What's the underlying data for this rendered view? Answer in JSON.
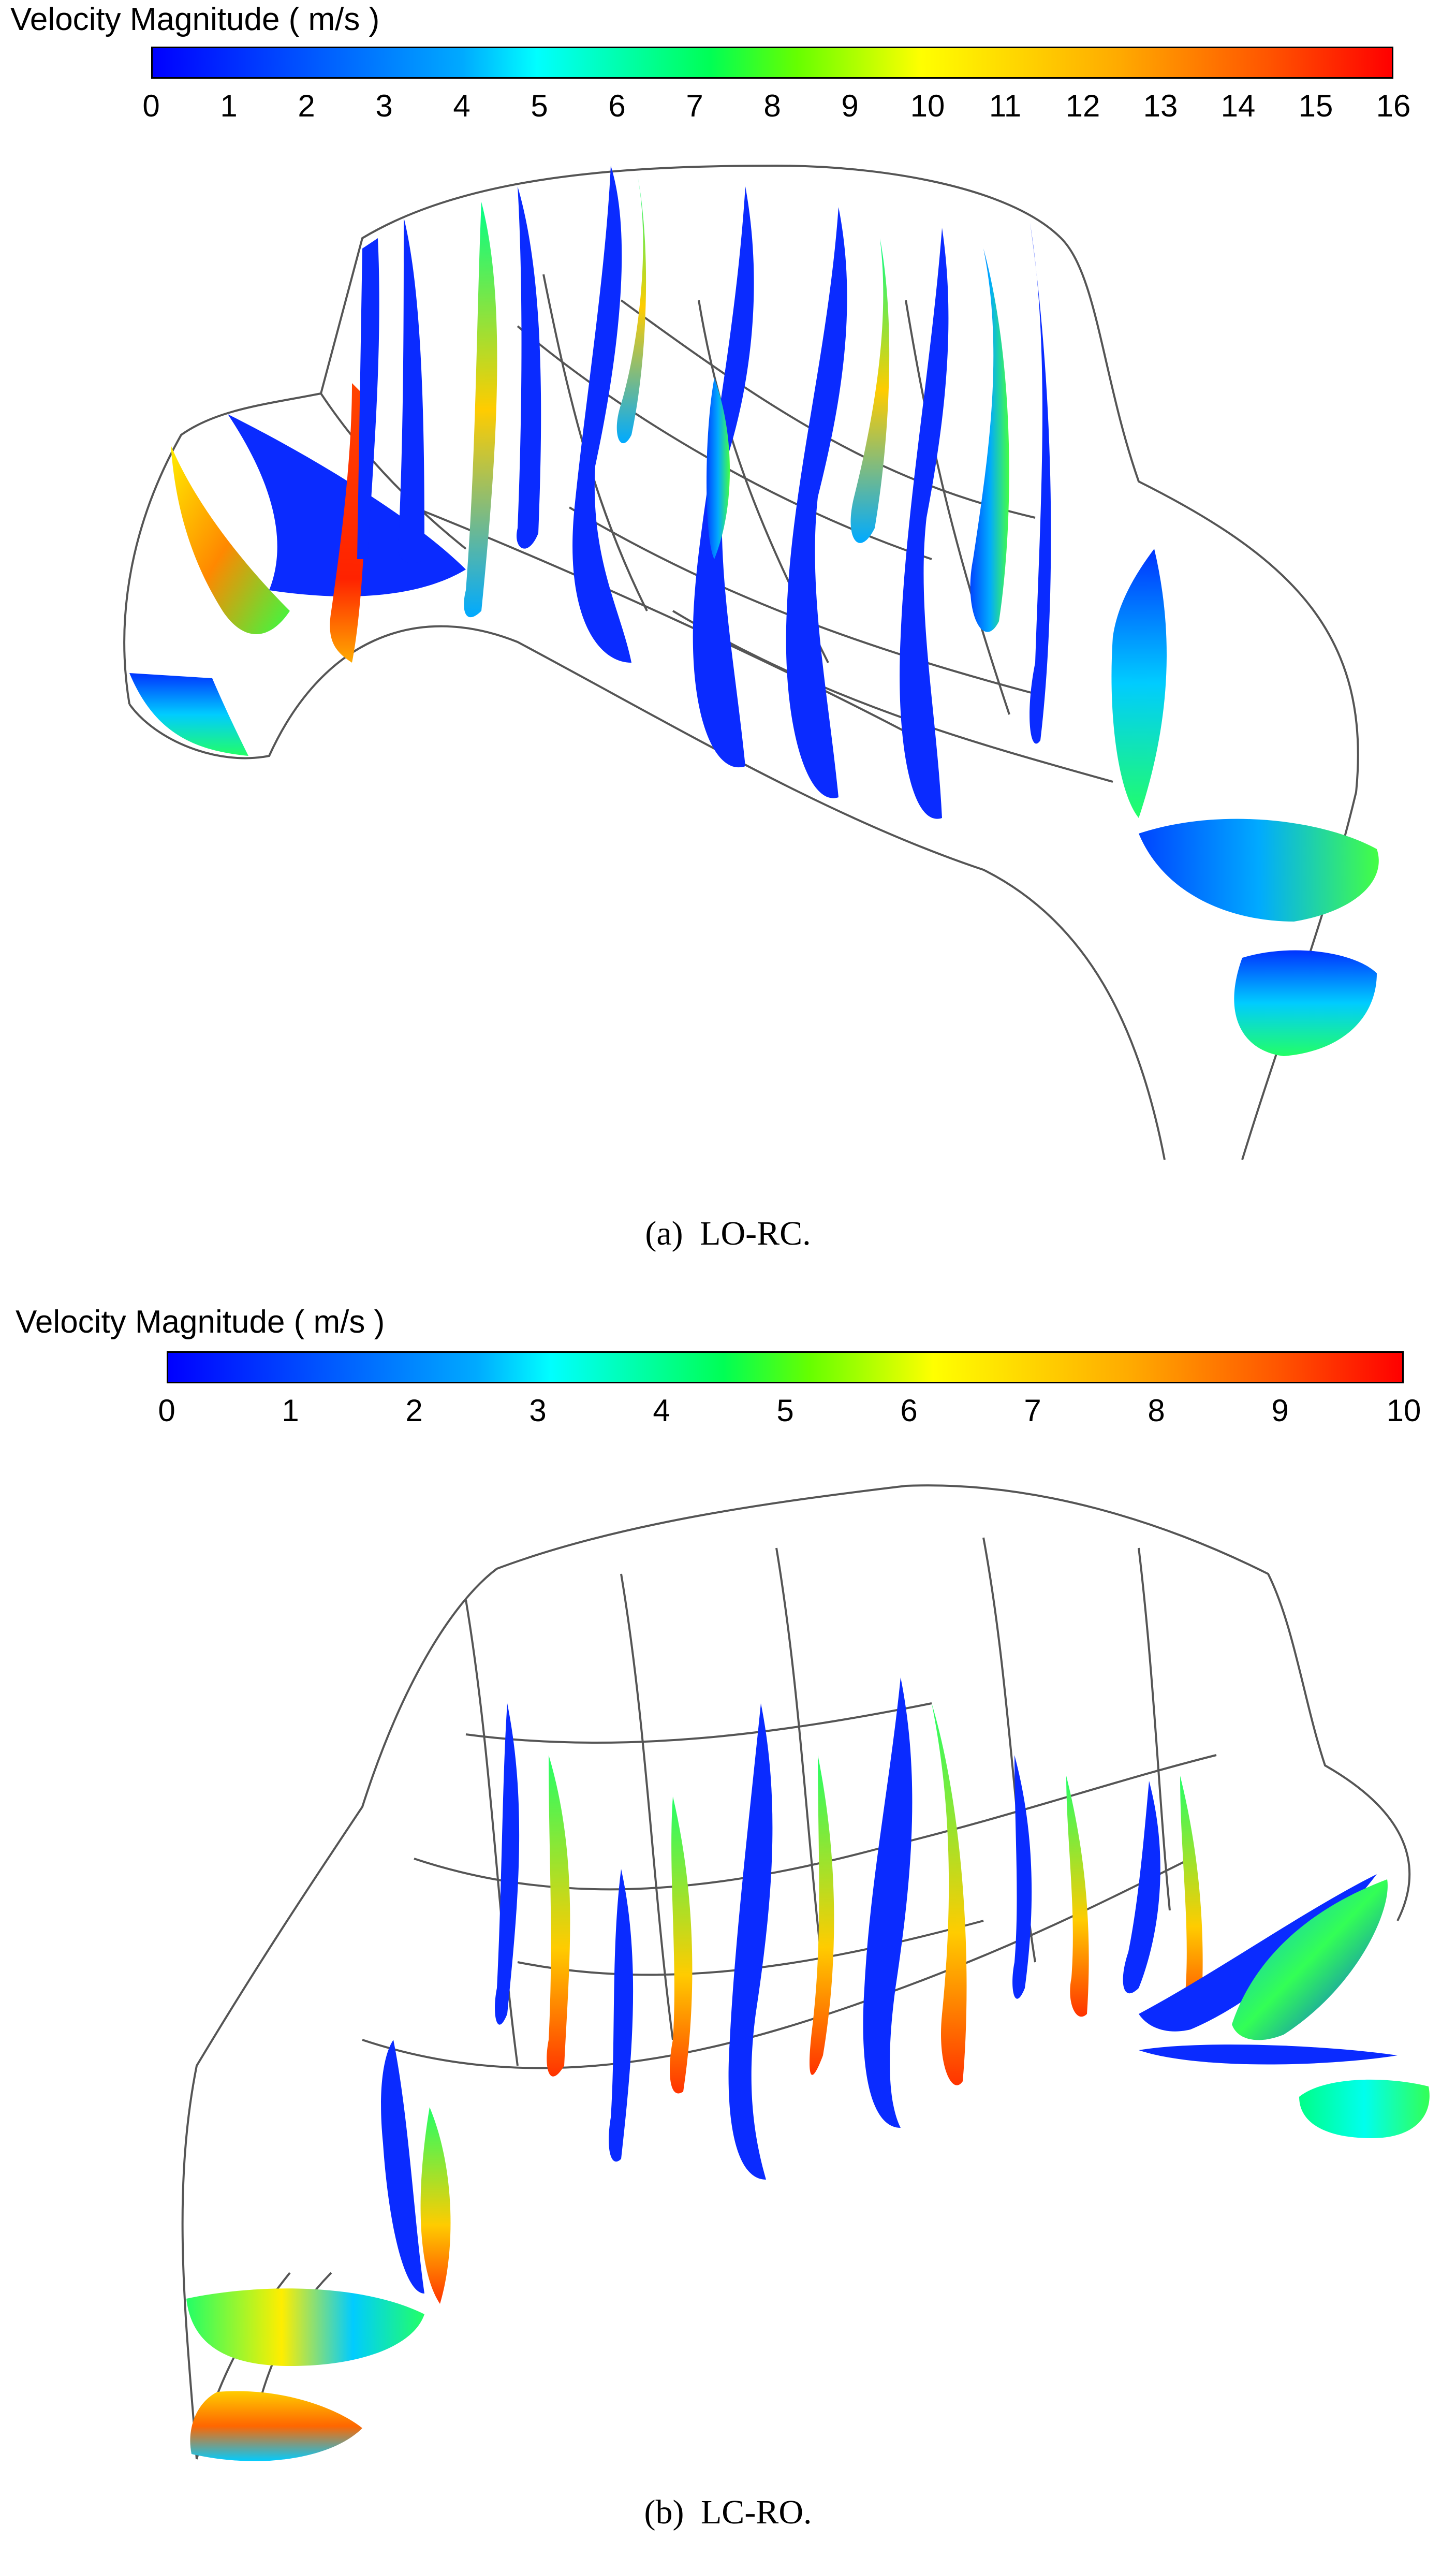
{
  "panels": [
    {
      "colorbar": {
        "title": "Velocity Magnitude ( m/s )",
        "ticks": [
          "0",
          "1",
          "2",
          "3",
          "4",
          "5",
          "6",
          "7",
          "8",
          "9",
          "10",
          "11",
          "12",
          "13",
          "14",
          "15",
          "16"
        ],
        "colors": [
          "#0000ff",
          "#00aaff",
          "#00ffff",
          "#00ff55",
          "#66ff00",
          "#ffff00",
          "#ffaa00",
          "#ff5500",
          "#ff0000"
        ]
      },
      "caption": {
        "label": "(a)",
        "text": "LO-RC."
      }
    },
    {
      "colorbar": {
        "title": "Velocity Magnitude ( m/s )",
        "ticks": [
          "0",
          "1",
          "2",
          "3",
          "4",
          "5",
          "6",
          "7",
          "8",
          "9",
          "10"
        ],
        "colors": [
          "#0000ff",
          "#00aaff",
          "#00ffff",
          "#00ff55",
          "#66ff00",
          "#ffff00",
          "#ffaa00",
          "#ff5500",
          "#ff0000"
        ]
      },
      "caption": {
        "label": "(b)",
        "text": "LC-RO."
      }
    }
  ]
}
